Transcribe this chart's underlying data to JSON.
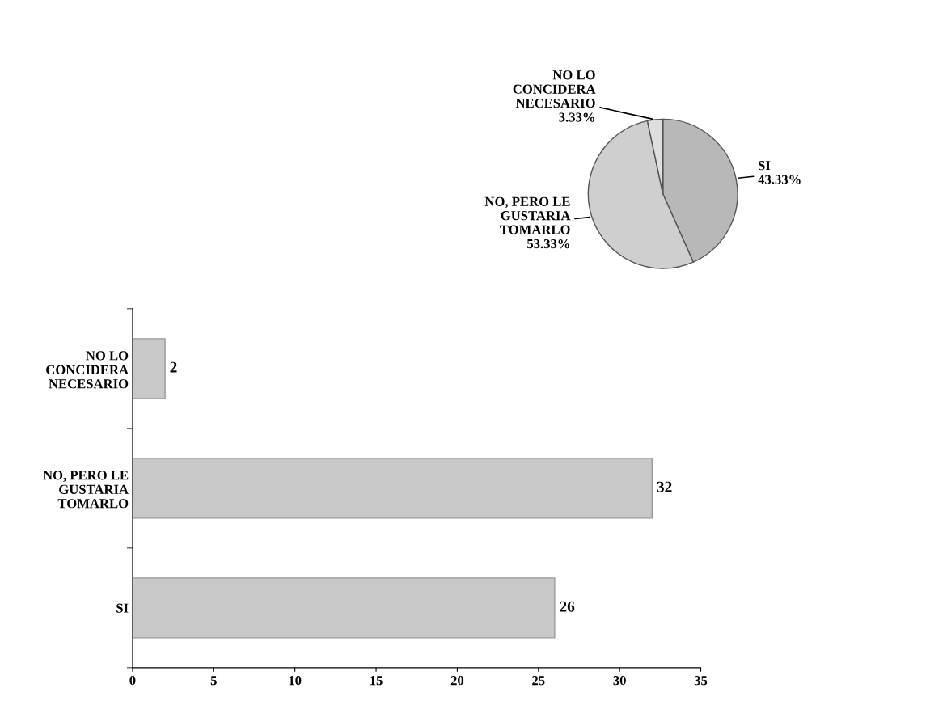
{
  "chart_data": [
    {
      "type": "pie",
      "categories": [
        "SI",
        "NO, PERO LE\nGUSTARIA\nTOMARLO",
        "NO LO\nCONCIDERA\nNECESARIO"
      ],
      "values": [
        43.33,
        53.33,
        3.33
      ],
      "colors": [
        "#b8b8b8",
        "#cfcfcf",
        "#dedede"
      ],
      "value_labels": [
        "43.33%",
        "53.33%",
        "3.33%"
      ],
      "legend": false
    },
    {
      "type": "bar",
      "orientation": "horizontal",
      "categories": [
        "NO LO\nCONCIDERA\nNECESARIO",
        "NO, PERO LE\nGUSTARIA\nTOMARLO",
        "SI"
      ],
      "values": [
        2,
        32,
        26
      ],
      "color": "#c8c8c8",
      "xlim": [
        0,
        35
      ],
      "xticks": [
        0,
        5,
        10,
        15,
        20,
        25,
        30,
        35
      ],
      "data_labels": true,
      "grid": false,
      "legend": false
    }
  ]
}
